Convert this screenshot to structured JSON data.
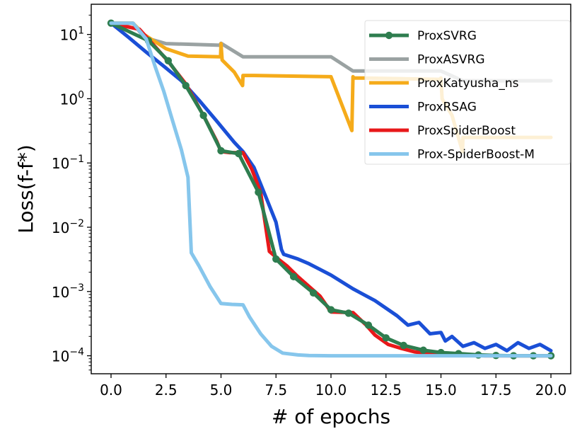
{
  "chart_data": {
    "type": "line",
    "title": "",
    "xlabel": "# of epochs",
    "ylabel": "Loss(f-f*)",
    "xlim": [
      -0.9,
      20.9
    ],
    "ylim_log10": [
      -4.28,
      1.47
    ],
    "yscale": "log",
    "grid": false,
    "legend_position": "top-right",
    "x_ticks": [
      {
        "value": 0.0,
        "label": "0.0"
      },
      {
        "value": 2.5,
        "label": "2.5"
      },
      {
        "value": 5.0,
        "label": "5.0"
      },
      {
        "value": 7.5,
        "label": "7.5"
      },
      {
        "value": 10.0,
        "label": "10.0"
      },
      {
        "value": 12.5,
        "label": "12.5"
      },
      {
        "value": 15.0,
        "label": "15.0"
      },
      {
        "value": 17.5,
        "label": "17.5"
      },
      {
        "value": 20.0,
        "label": "20.0"
      }
    ],
    "y_ticks": [
      {
        "exp": 1,
        "base": "10",
        "sup": "1"
      },
      {
        "exp": 0,
        "base": "10",
        "sup": "0"
      },
      {
        "exp": -1,
        "base": "10",
        "sup": "−1"
      },
      {
        "exp": -2,
        "base": "10",
        "sup": "−2"
      },
      {
        "exp": -3,
        "base": "10",
        "sup": "−3"
      },
      {
        "exp": -4,
        "base": "10",
        "sup": "−4"
      }
    ],
    "series": [
      {
        "name": "ProxASVRG",
        "color": "#9aa2a2",
        "width": 5,
        "x": [
          0,
          1,
          1.5,
          2.5,
          4.95,
          5.0,
          6.0,
          10.0,
          11.0,
          15.0,
          16.0,
          20.0
        ],
        "y": [
          15,
          15,
          9,
          7.2,
          6.8,
          7.3,
          4.5,
          4.5,
          2.7,
          2.7,
          1.9,
          1.9
        ]
      },
      {
        "name": "ProxKatyusha_ns",
        "color": "#f5ab1a",
        "width": 5,
        "x": [
          0,
          1,
          1.5,
          2.5,
          3.5,
          4.98,
          5.0,
          5.05,
          5.6,
          5.98,
          6.0,
          6.05,
          6.5,
          10.0,
          10.95,
          11.0,
          11.05,
          11.5,
          14.95,
          15.0,
          15.05,
          15.5,
          15.98,
          16.0,
          16.05,
          17.0,
          20.0
        ],
        "y": [
          15,
          15,
          10,
          6.0,
          4.6,
          4.5,
          7.2,
          4.0,
          2.6,
          1.6,
          2.3,
          2.3,
          2.3,
          2.2,
          0.32,
          2.2,
          2.1,
          2.1,
          2.0,
          2.1,
          1.0,
          0.55,
          0.15,
          0.25,
          0.25,
          0.25,
          0.25
        ]
      },
      {
        "name": "ProxRSAG",
        "color": "#1a4fd6",
        "width": 5,
        "x": [
          0,
          0.8,
          1.6,
          2.4,
          3.2,
          4.0,
          4.8,
          5.6,
          6.0,
          6.5,
          7.0,
          7.5,
          7.75,
          7.85,
          8.5,
          9.0,
          10.0,
          11.0,
          12.0,
          13.0,
          13.5,
          14.0,
          14.5,
          15.0,
          15.2,
          15.5,
          16.0,
          16.5,
          17.0,
          17.5,
          18.0,
          18.5,
          19.0,
          19.5,
          20.0
        ],
        "y": [
          15,
          9,
          5.3,
          3.2,
          1.9,
          0.95,
          0.45,
          0.21,
          0.15,
          0.085,
          0.032,
          0.012,
          0.0045,
          0.0038,
          0.0032,
          0.0027,
          0.0018,
          0.0011,
          0.00072,
          0.00042,
          0.0003,
          0.00033,
          0.00022,
          0.00023,
          0.00017,
          0.0002,
          0.00014,
          0.00016,
          0.00013,
          0.00015,
          0.00012,
          0.00016,
          0.00013,
          0.00015,
          0.00012
        ]
      },
      {
        "name": "ProxSpiderBoost",
        "color": "#e8181a",
        "width": 5,
        "x": [
          0,
          1.3,
          2.0,
          2.6,
          3.4,
          4.2,
          4.8,
          5.0,
          5.4,
          6.0,
          6.4,
          6.8,
          7.0,
          7.2,
          7.6,
          8.0,
          8.5,
          9.0,
          9.5,
          10.0,
          11.0,
          11.6,
          12.0,
          12.6,
          13.2,
          13.8,
          14.5,
          15.0,
          17.0,
          20.0
        ],
        "y": [
          15,
          12,
          6.5,
          3.8,
          1.7,
          0.55,
          0.22,
          0.15,
          0.145,
          0.145,
          0.08,
          0.035,
          0.012,
          0.0042,
          0.0032,
          0.0025,
          0.0017,
          0.0012,
          0.00085,
          0.00048,
          0.00047,
          0.0003,
          0.00021,
          0.00015,
          0.00013,
          0.000115,
          0.000108,
          0.000105,
          0.0001,
          0.0001
        ]
      },
      {
        "name": "ProxSVRG",
        "color": "#2e7d4f",
        "width": 5,
        "marker": "circle",
        "x": [
          0.0,
          1.7,
          2.6,
          3.4,
          4.2,
          5.0,
          5.8,
          6.7,
          7.5,
          8.3,
          9.2,
          10.0,
          10.8,
          11.7,
          12.5,
          13.3,
          14.2,
          15.0,
          15.8,
          16.7,
          17.5,
          18.3,
          19.2,
          20.0
        ],
        "y": [
          15,
          8.0,
          3.9,
          1.6,
          0.55,
          0.155,
          0.14,
          0.035,
          0.0032,
          0.0017,
          0.00095,
          0.00052,
          0.00046,
          0.0003,
          0.00019,
          0.000145,
          0.000122,
          0.000112,
          0.000108,
          0.000103,
          0.000101,
          0.0001,
          0.0001,
          0.0001
        ]
      },
      {
        "name": "Prox-SpiderBoost-M",
        "color": "#86c6ec",
        "width": 5,
        "x": [
          0,
          1.0,
          1.6,
          2.0,
          2.4,
          2.8,
          3.2,
          3.5,
          3.65,
          4.0,
          4.5,
          5.0,
          5.5,
          6.0,
          6.3,
          6.8,
          7.3,
          7.8,
          8.5,
          9.0,
          10.0,
          12.0,
          15.0,
          20.0
        ],
        "y": [
          15,
          15,
          8.5,
          3.2,
          1.3,
          0.45,
          0.16,
          0.06,
          0.004,
          0.0025,
          0.0012,
          0.00065,
          0.00063,
          0.00062,
          0.0004,
          0.00022,
          0.00014,
          0.00011,
          0.000103,
          0.000101,
          0.0001,
          0.0001,
          0.0001,
          0.0001
        ]
      }
    ],
    "legend": [
      {
        "label": "ProxSVRG",
        "color": "#2e7d4f",
        "marker": "circle"
      },
      {
        "label": "ProxASVRG",
        "color": "#9aa2a2"
      },
      {
        "label": "ProxKatyusha_ns",
        "color": "#f5ab1a"
      },
      {
        "label": "ProxRSAG",
        "color": "#1a4fd6"
      },
      {
        "label": "ProxSpiderBoost",
        "color": "#e8181a"
      },
      {
        "label": "Prox-SpiderBoost-M",
        "color": "#86c6ec"
      }
    ]
  }
}
